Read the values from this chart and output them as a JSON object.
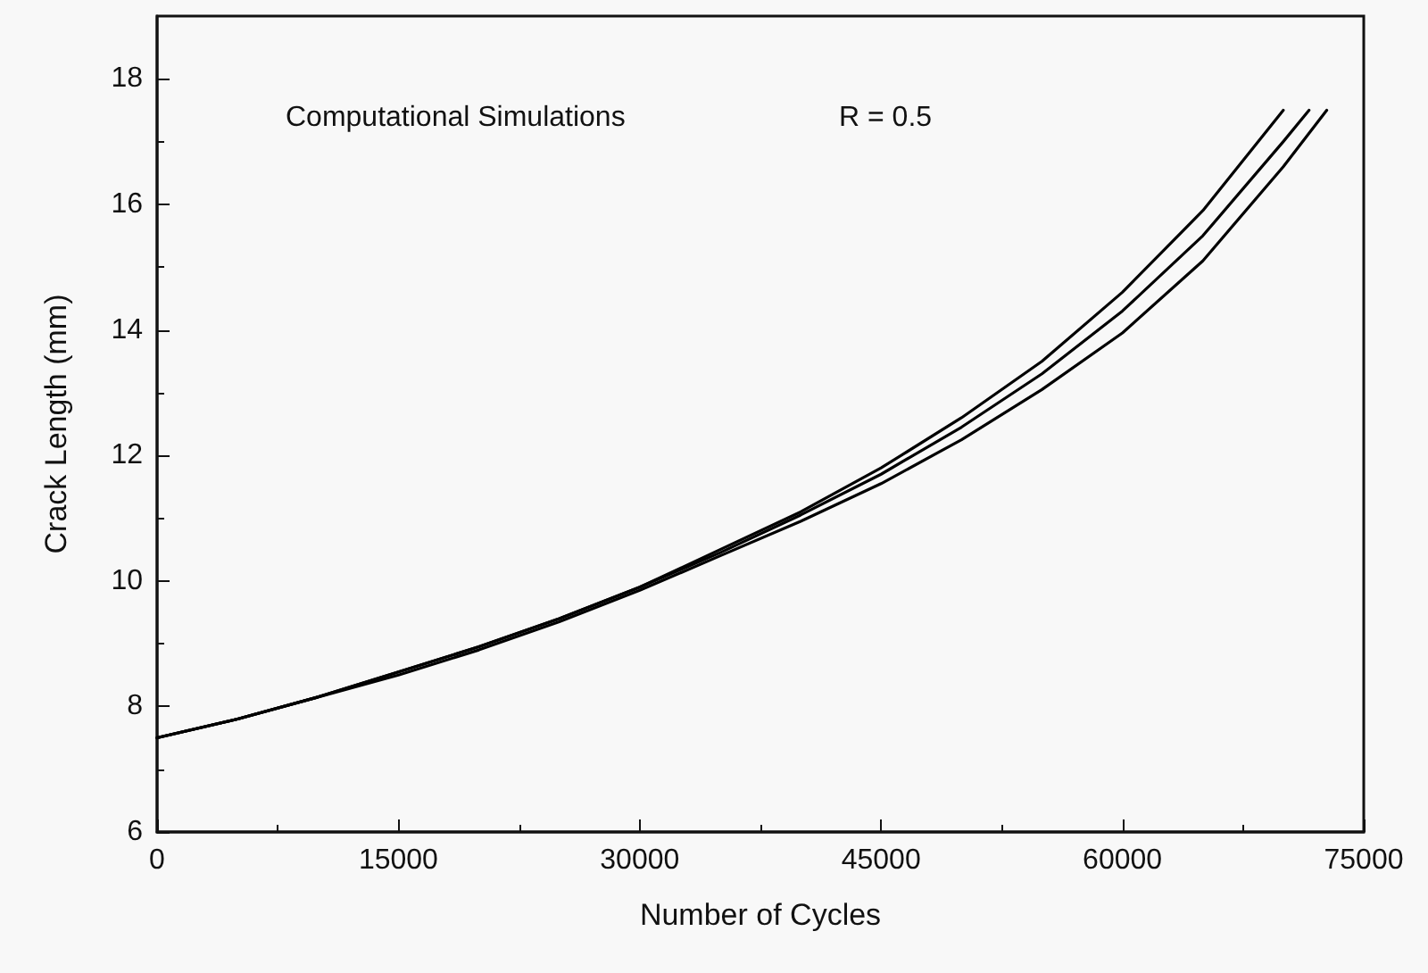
{
  "chart_data": {
    "type": "line",
    "xlabel": "Number of Cycles",
    "ylabel": "Crack Length (mm)",
    "annotations": [
      "Computational Simulations",
      "R = 0.5"
    ],
    "xlim": [
      0,
      75000
    ],
    "xticks": [
      0,
      15000,
      30000,
      45000,
      60000,
      75000
    ],
    "ylim": [
      6,
      19
    ],
    "yticks": [
      6,
      8,
      10,
      12,
      14,
      16,
      18
    ],
    "grid": false,
    "marker": "none",
    "line_style": "solid",
    "series": [
      {
        "color": "#000000",
        "x": [
          0,
          5000,
          10000,
          15000,
          20000,
          25000,
          30000,
          35000,
          40000,
          45000,
          50000,
          55000,
          60000,
          65000,
          70000
        ],
        "values": [
          7.5,
          7.8,
          8.15,
          8.55,
          8.95,
          9.4,
          9.9,
          10.5,
          11.1,
          11.8,
          12.6,
          13.5,
          14.6,
          15.9,
          17.5
        ]
      },
      {
        "color": "#000000",
        "x": [
          0,
          5000,
          10000,
          15000,
          20000,
          25000,
          30000,
          35000,
          40000,
          45000,
          50000,
          55000,
          60000,
          65000,
          70000,
          71600
        ],
        "values": [
          7.5,
          7.8,
          8.15,
          8.55,
          8.95,
          9.4,
          9.9,
          10.45,
          11.05,
          11.7,
          12.45,
          13.3,
          14.3,
          15.5,
          17.0,
          17.5
        ]
      },
      {
        "color": "#000000",
        "x": [
          0,
          5000,
          10000,
          15000,
          20000,
          25000,
          30000,
          35000,
          40000,
          45000,
          50000,
          55000,
          60000,
          65000,
          70000,
          72700
        ],
        "values": [
          7.5,
          7.8,
          8.15,
          8.5,
          8.9,
          9.35,
          9.85,
          10.4,
          10.95,
          11.55,
          12.25,
          13.05,
          13.95,
          15.1,
          16.6,
          17.5
        ]
      }
    ]
  }
}
